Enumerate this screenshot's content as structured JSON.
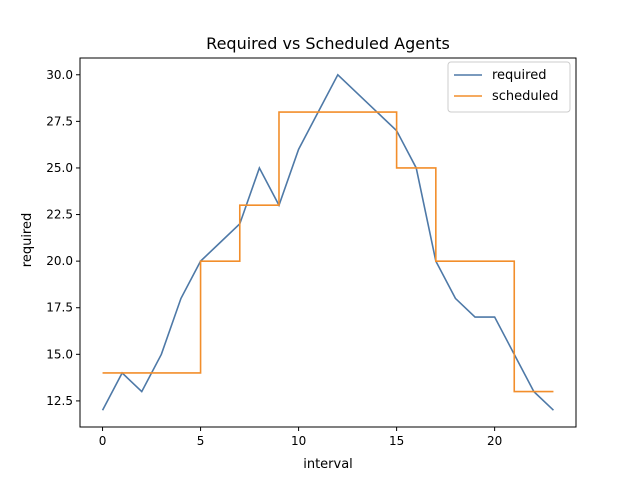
{
  "chart_data": {
    "type": "line",
    "title": "Required vs Scheduled Agents",
    "xlabel": "interval",
    "ylabel": "required",
    "x": [
      0,
      1,
      2,
      3,
      4,
      5,
      6,
      7,
      8,
      9,
      10,
      11,
      12,
      13,
      14,
      15,
      16,
      17,
      18,
      19,
      20,
      21,
      22,
      23
    ],
    "xlim": [
      -1.15,
      24.15
    ],
    "ylim": [
      11.1,
      30.9
    ],
    "xticks": [
      0,
      5,
      10,
      15,
      20
    ],
    "xtick_labels": [
      "0",
      "5",
      "10",
      "15",
      "20"
    ],
    "yticks": [
      12.5,
      15.0,
      17.5,
      20.0,
      22.5,
      25.0,
      27.5,
      30.0
    ],
    "ytick_labels": [
      "12.5",
      "15.0",
      "17.5",
      "20.0",
      "22.5",
      "25.0",
      "27.5",
      "30.0"
    ],
    "grid": false,
    "legend_position": "top-right",
    "series": [
      {
        "name": "required",
        "color": "#4e79a7",
        "step": false,
        "values": [
          12,
          14,
          13,
          15,
          18,
          20,
          21,
          22,
          25,
          23,
          26,
          28,
          30,
          29,
          28,
          27,
          25,
          20,
          18,
          17,
          17,
          15,
          13,
          12
        ]
      },
      {
        "name": "scheduled",
        "color": "#f28e2b",
        "step": true,
        "values": [
          14,
          14,
          14,
          14,
          14,
          20,
          20,
          23,
          23,
          28,
          28,
          28,
          28,
          28,
          28,
          25,
          25,
          20,
          20,
          20,
          20,
          13,
          13,
          13
        ]
      }
    ]
  }
}
